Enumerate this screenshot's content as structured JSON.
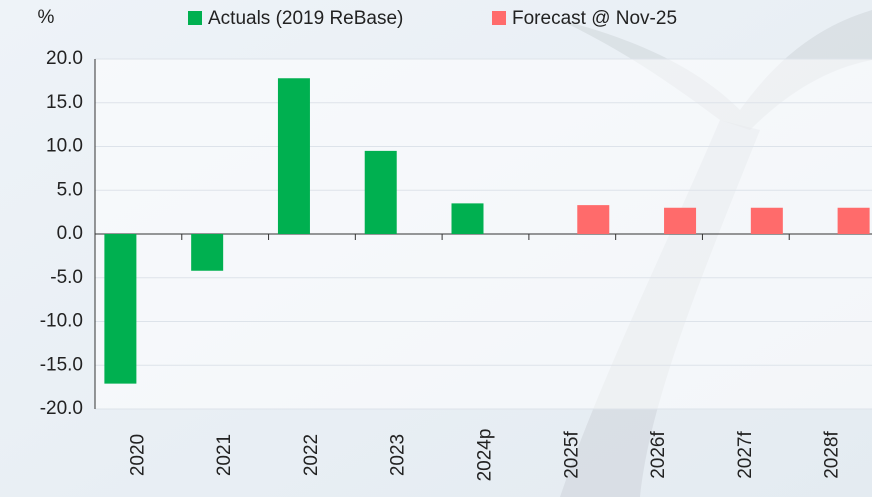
{
  "chart_data": {
    "type": "bar",
    "y_unit_label": "%",
    "categories": [
      "2020",
      "2021",
      "2022",
      "2023",
      "2024p",
      "2025f",
      "2026f",
      "2027f",
      "2028f"
    ],
    "series": [
      {
        "name": "Actuals (2019 ReBase)",
        "color": "#00b050",
        "values": [
          -17.1,
          -4.2,
          17.8,
          9.5,
          3.5,
          null,
          null,
          null,
          null
        ]
      },
      {
        "name": "Forecast @ Nov-25",
        "color": "#ff6b6b",
        "values": [
          null,
          null,
          null,
          null,
          null,
          3.3,
          3.0,
          3.0,
          3.0
        ]
      }
    ],
    "ylim": [
      -20,
      20
    ],
    "yticks": [
      {
        "value": -20,
        "label": "-20.0"
      },
      {
        "value": -15,
        "label": "-15.0"
      },
      {
        "value": -10,
        "label": "-10.0"
      },
      {
        "value": -5,
        "label": "-5.0"
      },
      {
        "value": 0,
        "label": "0.0"
      },
      {
        "value": 5,
        "label": "5.0"
      },
      {
        "value": 10,
        "label": "10.0"
      },
      {
        "value": 15,
        "label": "15.0"
      },
      {
        "value": 20,
        "label": "20.0"
      }
    ],
    "grid": true,
    "legend_position": "top"
  }
}
